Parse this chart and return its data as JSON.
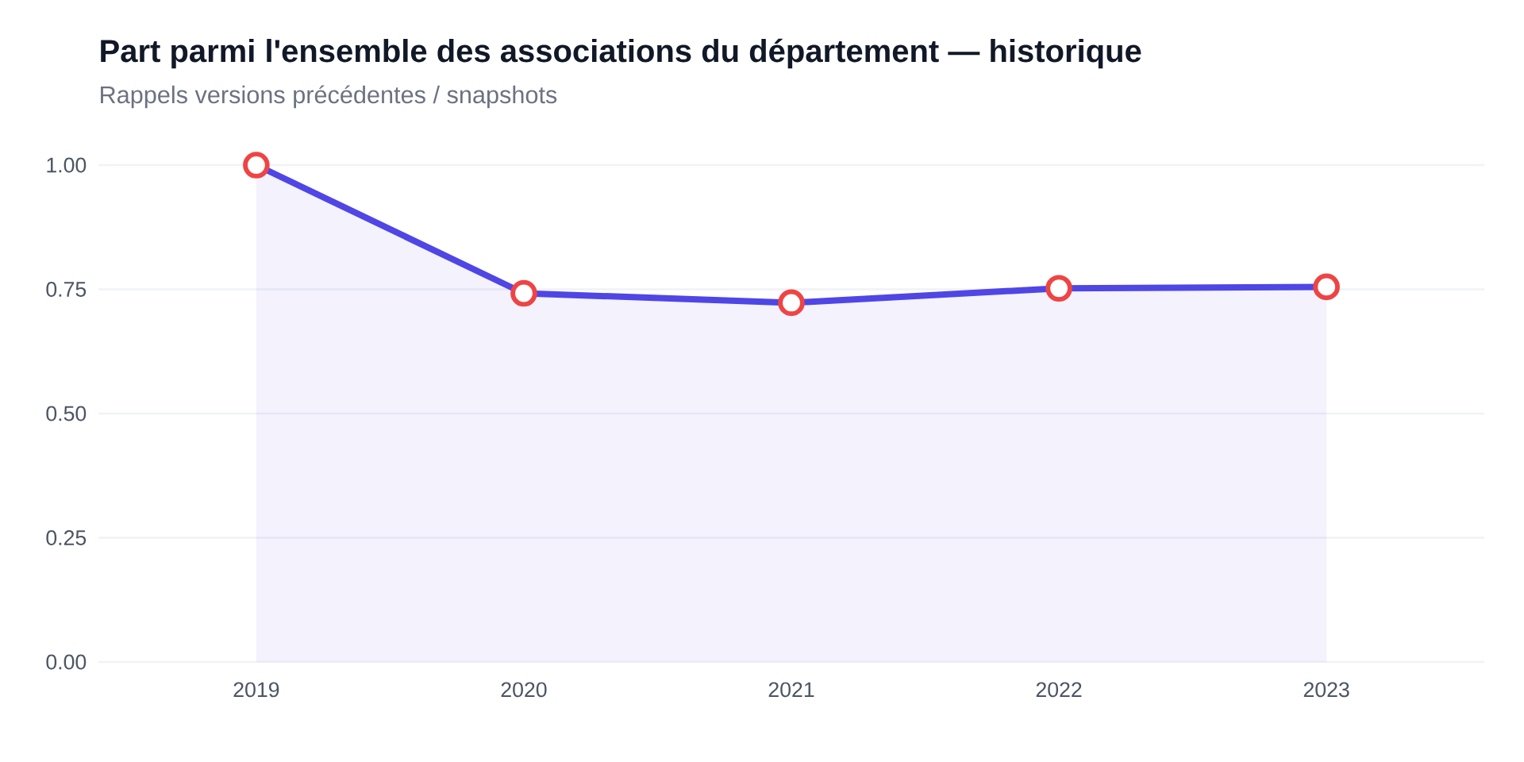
{
  "chart_data": {
    "type": "area",
    "title": "Part parmi l'ensemble des associations du département — historique",
    "subtitle": "Rappels versions précédentes / snapshots",
    "categories": [
      "2019",
      "2020",
      "2021",
      "2022",
      "2023"
    ],
    "series": [
      {
        "color": "#4f46e5",
        "values": [
          1.0,
          0.742,
          0.723,
          0.752,
          0.755
        ]
      }
    ],
    "ylim": [
      0,
      1
    ],
    "yticks": [
      {
        "value": 0,
        "label": "0.00"
      },
      {
        "value": 0.25,
        "label": "0.25"
      },
      {
        "value": 0.5,
        "label": "0.50"
      },
      {
        "value": 0.75,
        "label": "0.75"
      },
      {
        "value": 1,
        "label": "1.00"
      }
    ],
    "grid": "y",
    "marker": "circle",
    "line_style": "solid"
  }
}
